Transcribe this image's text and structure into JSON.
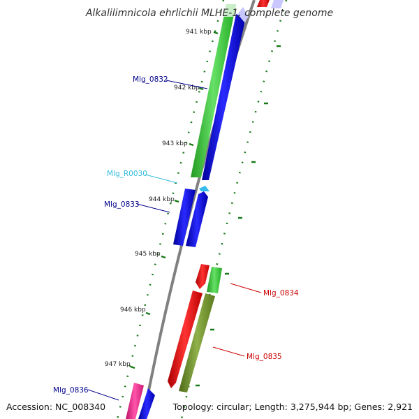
{
  "title": "Alkalilimnicola ehrlichii MLHE-1, complete genome",
  "accession": "Accession: NC_008340",
  "summary": "Topology: circular; Length: 3,275,944 bp; Genes: 2,921",
  "colors": {
    "backbone": "#808080",
    "tick": "#1a7a1a",
    "blue": "#0000ee",
    "green": "#33cc33",
    "red": "#ee0000",
    "olive": "#6b8e23",
    "magenta": "#ee2288",
    "cyan": "#33bbee",
    "label_blue": "#00008b",
    "label_red": "#cc0000",
    "label_cyan": "#33bbdd"
  },
  "ticks": [
    {
      "label": "941 kbp"
    },
    {
      "label": "942 kbp"
    },
    {
      "label": "943 kbp"
    },
    {
      "label": "944 kbp"
    },
    {
      "label": "945 kbp"
    },
    {
      "label": "946 kbp"
    },
    {
      "label": "947 kbp"
    }
  ],
  "genes": [
    {
      "id": "Mlg_0832",
      "label": "Mlg_0832"
    },
    {
      "id": "Mlg_R0030",
      "label": "Mlg_R0030"
    },
    {
      "id": "Mlg_0833",
      "label": "Mlg_0833"
    },
    {
      "id": "Mlg_0834",
      "label": "Mlg_0834"
    },
    {
      "id": "Mlg_0835",
      "label": "Mlg_0835"
    },
    {
      "id": "Mlg_0836",
      "label": "Mlg_0836"
    }
  ]
}
